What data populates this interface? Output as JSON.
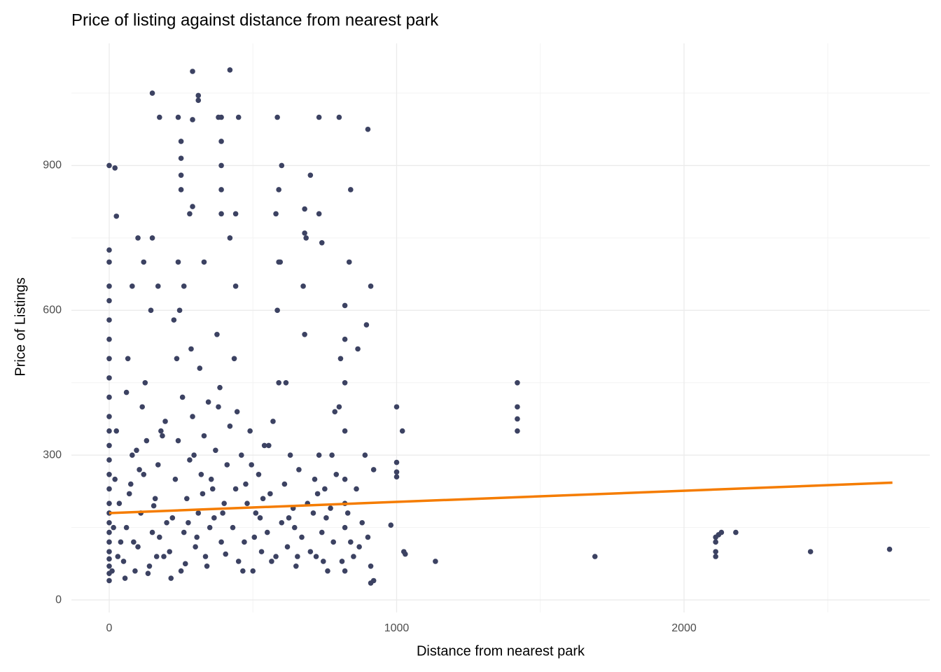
{
  "chart_data": {
    "type": "scatter",
    "title": "Price of listing against distance from nearest park",
    "x_label": "Distance from nearest park",
    "y_label": "Price of Listings",
    "color": "#3c4262",
    "xlim": [
      -131.5,
      2855
    ],
    "ylim": [
      -26,
      1153
    ],
    "xticks": [
      0,
      1000,
      2000
    ],
    "yticks": [
      0,
      300,
      600,
      900
    ],
    "x_minor_ticks": [
      500,
      1500,
      2500
    ],
    "y_minor_ticks": [
      150,
      450,
      750,
      1050
    ],
    "grid": true,
    "trend": {
      "x": [
        0,
        2725
      ],
      "y": [
        180,
        243
      ],
      "color": "#f57c00"
    },
    "x": [
      0,
      0,
      0,
      0,
      0,
      0,
      0,
      0,
      0,
      0,
      0,
      0,
      0,
      0,
      0,
      0,
      0,
      0,
      0,
      0,
      0,
      0,
      0,
      0,
      0,
      0,
      10,
      15,
      20,
      25,
      30,
      35,
      40,
      20,
      25,
      60,
      50,
      60,
      70,
      80,
      90,
      100,
      110,
      120,
      130,
      140,
      150,
      160,
      170,
      180,
      190,
      200,
      55,
      75,
      95,
      115,
      135,
      155,
      175,
      195,
      65,
      85,
      105,
      125,
      145,
      165,
      185,
      210,
      220,
      230,
      240,
      250,
      260,
      270,
      280,
      290,
      300,
      310,
      320,
      330,
      340,
      350,
      360,
      370,
      380,
      390,
      400,
      410,
      420,
      215,
      235,
      255,
      275,
      295,
      315,
      335,
      355,
      375,
      395,
      225,
      245,
      265,
      285,
      305,
      325,
      345,
      365,
      385,
      405,
      430,
      440,
      450,
      460,
      470,
      480,
      490,
      500,
      510,
      520,
      530,
      540,
      550,
      560,
      570,
      580,
      590,
      600,
      610,
      620,
      630,
      640,
      650,
      660,
      670,
      680,
      690,
      700,
      435,
      465,
      495,
      525,
      555,
      585,
      615,
      645,
      675,
      445,
      475,
      505,
      535,
      565,
      595,
      625,
      655,
      685,
      710,
      720,
      730,
      740,
      750,
      760,
      770,
      780,
      790,
      800,
      810,
      820,
      820,
      820,
      820,
      820,
      820,
      820,
      820,
      830,
      840,
      850,
      860,
      870,
      880,
      890,
      900,
      910,
      910,
      920,
      920,
      715,
      745,
      775,
      805,
      835,
      865,
      895,
      725,
      755,
      785,
      1000,
      1000,
      1000,
      1000,
      1020,
      1030,
      1025,
      1135,
      1420,
      1420,
      1420,
      1420,
      1690,
      2110,
      2110,
      2110,
      2110,
      2120,
      2130,
      2180,
      2440,
      2715,
      980,
      290,
      420,
      150,
      310,
      310,
      175,
      240,
      290,
      380,
      390,
      450,
      585,
      730,
      800,
      900,
      250,
      250,
      250,
      250,
      390,
      390,
      390,
      600,
      590,
      700,
      840,
      290,
      280,
      390,
      440,
      580,
      680,
      730,
      420,
      100,
      150,
      240,
      330,
      590,
      740,
      680,
      120,
      80,
      170,
      260,
      440,
      910
    ],
    "values": [
      40,
      55,
      70,
      85,
      100,
      120,
      140,
      160,
      180,
      200,
      230,
      260,
      290,
      320,
      350,
      380,
      420,
      460,
      500,
      540,
      580,
      620,
      650,
      700,
      725,
      900,
      60,
      150,
      250,
      350,
      90,
      200,
      120,
      895,
      795,
      430,
      80,
      150,
      220,
      300,
      60,
      110,
      180,
      260,
      330,
      70,
      140,
      210,
      280,
      350,
      90,
      160,
      45,
      240,
      310,
      400,
      55,
      195,
      130,
      370,
      500,
      120,
      270,
      450,
      600,
      90,
      340,
      100,
      170,
      250,
      330,
      60,
      140,
      210,
      290,
      380,
      110,
      180,
      260,
      340,
      70,
      150,
      230,
      310,
      400,
      120,
      200,
      280,
      360,
      45,
      500,
      420,
      160,
      300,
      480,
      90,
      250,
      550,
      180,
      580,
      600,
      75,
      520,
      130,
      220,
      410,
      170,
      440,
      95,
      150,
      230,
      80,
      300,
      120,
      200,
      350,
      60,
      180,
      260,
      100,
      320,
      140,
      220,
      370,
      90,
      450,
      160,
      240,
      110,
      300,
      190,
      70,
      270,
      130,
      550,
      200,
      100,
      500,
      60,
      280,
      170,
      320,
      600,
      450,
      150,
      650,
      390,
      240,
      130,
      210,
      80,
      700,
      170,
      90,
      750,
      180,
      90,
      300,
      140,
      230,
      60,
      190,
      120,
      260,
      400,
      80,
      60,
      150,
      250,
      350,
      450,
      540,
      610,
      200,
      180,
      120,
      90,
      230,
      110,
      160,
      300,
      130,
      70,
      35,
      40,
      270,
      250,
      80,
      300,
      500,
      700,
      520,
      570,
      220,
      170,
      390,
      400,
      285,
      265,
      255,
      350,
      95,
      100,
      80,
      450,
      400,
      375,
      350,
      90,
      130,
      120,
      100,
      90,
      135,
      140,
      140,
      100,
      105,
      155,
      1095,
      1098,
      1050,
      1045,
      1035,
      1000,
      1000,
      995,
      1000,
      1000,
      1000,
      1000,
      1000,
      1000,
      975,
      950,
      915,
      880,
      850,
      950,
      900,
      850,
      900,
      850,
      880,
      850,
      815,
      800,
      800,
      800,
      800,
      810,
      800,
      750,
      750,
      750,
      700,
      700,
      700,
      740,
      760,
      700,
      650,
      650,
      650,
      650,
      650
    ]
  }
}
